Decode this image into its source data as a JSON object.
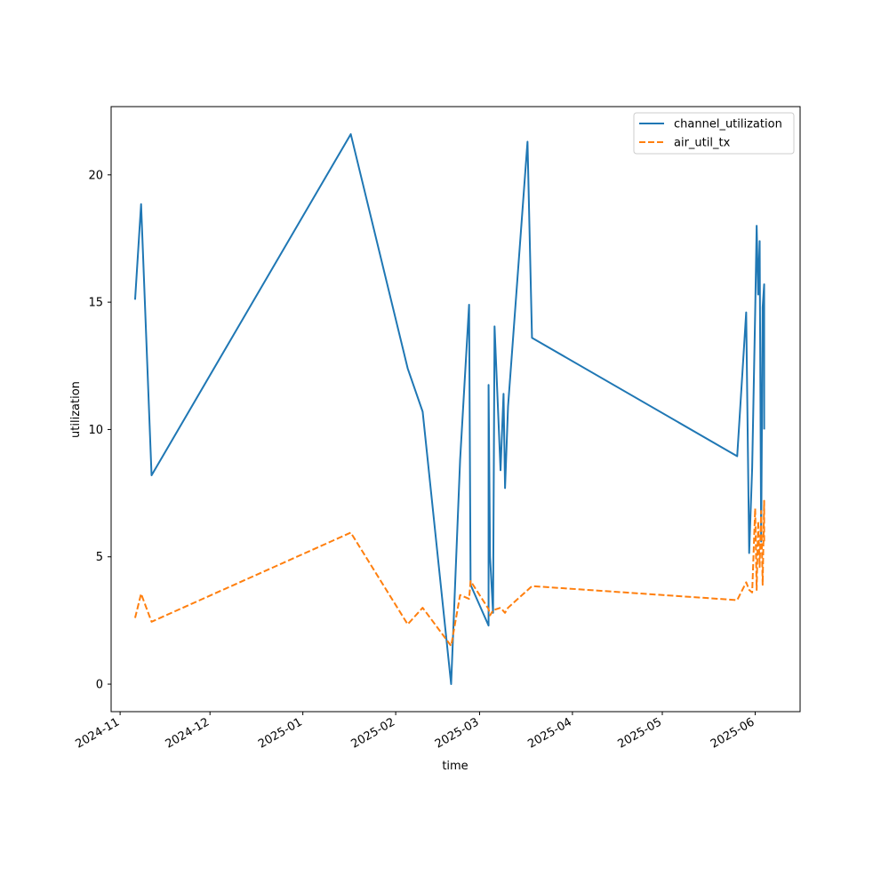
{
  "chart_data": {
    "type": "line",
    "title": "",
    "xlabel": "time",
    "ylabel": "utilization",
    "x_ticks": [
      "2024-11",
      "2024-12",
      "2025-01",
      "2025-02",
      "2025-03",
      "2025-04",
      "2025-05",
      "2025-06"
    ],
    "y_ticks": [
      0,
      5,
      10,
      15,
      20
    ],
    "xlim": [
      "2024-10-29",
      "2025-06-16"
    ],
    "ylim": [
      -1.08,
      22.68
    ],
    "grid": false,
    "legend_position": "top-right",
    "series": [
      {
        "name": "channel_utilization",
        "color": "#1f77b4",
        "style": "solid",
        "points": [
          [
            "2024-11-06T00:00",
            15.1
          ],
          [
            "2024-11-08T00:00",
            18.85
          ],
          [
            "2024-11-11T12:00",
            8.2
          ],
          [
            "2025-01-17T00:00",
            21.6
          ],
          [
            "2025-02-05T00:00",
            12.4
          ],
          [
            "2025-02-10T00:00",
            10.7
          ],
          [
            "2025-02-19T12:00",
            0.0
          ],
          [
            "2025-02-22T12:00",
            8.8
          ],
          [
            "2025-02-25T12:00",
            14.9
          ],
          [
            "2025-02-26T00:00",
            3.9
          ],
          [
            "2025-03-04T00:00",
            2.3
          ],
          [
            "2025-03-04T00:00",
            11.75
          ],
          [
            "2025-03-04T12:00",
            5.0
          ],
          [
            "2025-03-05T12:00",
            2.8
          ],
          [
            "2025-03-06T00:00",
            14.05
          ],
          [
            "2025-03-08T00:00",
            8.4
          ],
          [
            "2025-03-09T00:00",
            11.4
          ],
          [
            "2025-03-09T12:00",
            7.7
          ],
          [
            "2025-03-10T12:00",
            10.9
          ],
          [
            "2025-03-17T00:00",
            21.3
          ],
          [
            "2025-03-18T12:00",
            13.6
          ],
          [
            "2025-05-26T00:00",
            8.95
          ],
          [
            "2025-05-29T00:00",
            14.6
          ],
          [
            "2025-05-30T00:00",
            5.15
          ],
          [
            "2025-05-31T00:00",
            8.5
          ],
          [
            "2025-06-01T00:00",
            14.6
          ],
          [
            "2025-06-01T12:00",
            18.0
          ],
          [
            "2025-06-02T00:00",
            15.3
          ],
          [
            "2025-06-02T12:00",
            17.4
          ],
          [
            "2025-06-03T00:00",
            5.6
          ],
          [
            "2025-06-03T12:00",
            14.8
          ],
          [
            "2025-06-04T00:00",
            15.7
          ],
          [
            "2025-06-04T00:00",
            10.0
          ]
        ]
      },
      {
        "name": "air_util_tx",
        "color": "#ff7f0e",
        "style": "dashed",
        "points": [
          [
            "2024-11-06T00:00",
            2.6
          ],
          [
            "2024-11-08T00:00",
            3.55
          ],
          [
            "2024-11-11T12:00",
            2.45
          ],
          [
            "2025-01-17T00:00",
            5.95
          ],
          [
            "2025-02-05T00:00",
            2.35
          ],
          [
            "2025-02-10T00:00",
            3.0
          ],
          [
            "2025-02-19T12:00",
            1.5
          ],
          [
            "2025-02-22T12:00",
            3.5
          ],
          [
            "2025-02-25T12:00",
            3.35
          ],
          [
            "2025-02-26T00:00",
            4.05
          ],
          [
            "2025-03-04T00:00",
            2.95
          ],
          [
            "2025-03-04T12:00",
            2.7
          ],
          [
            "2025-03-05T12:00",
            2.9
          ],
          [
            "2025-03-08T00:00",
            3.0
          ],
          [
            "2025-03-09T12:00",
            2.8
          ],
          [
            "2025-03-10T12:00",
            3.0
          ],
          [
            "2025-03-18T12:00",
            3.85
          ],
          [
            "2025-05-26T00:00",
            3.3
          ],
          [
            "2025-05-29T00:00",
            4.0
          ],
          [
            "2025-05-30T00:00",
            3.7
          ],
          [
            "2025-05-31T00:00",
            3.6
          ],
          [
            "2025-06-01T00:00",
            6.9
          ],
          [
            "2025-06-01T12:00",
            3.7
          ],
          [
            "2025-06-02T00:00",
            6.4
          ],
          [
            "2025-06-02T12:00",
            4.6
          ],
          [
            "2025-06-03T00:00",
            6.8
          ],
          [
            "2025-06-03T12:00",
            3.9
          ],
          [
            "2025-06-04T00:00",
            7.2
          ],
          [
            "2025-06-04T00:00",
            5.5
          ]
        ]
      }
    ]
  }
}
